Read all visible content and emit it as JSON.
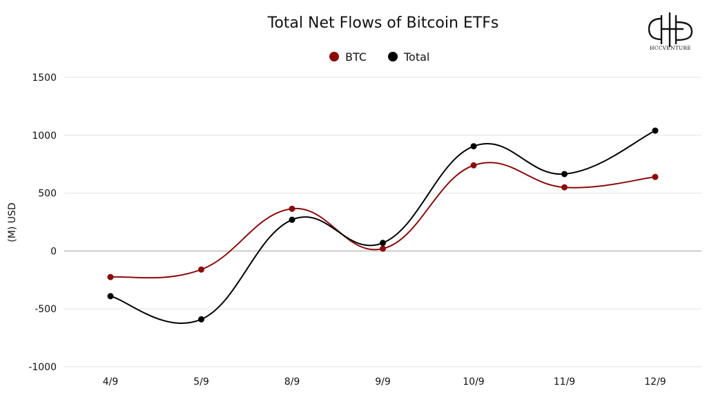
{
  "chart_data": {
    "type": "line",
    "title": "Total Net Flows of Bitcoin ETFs",
    "xlabel": "",
    "ylabel": "(M) USD",
    "categories": [
      "4/9",
      "5/9",
      "8/9",
      "9/9",
      "10/9",
      "11/9",
      "12/9"
    ],
    "ylim": [
      -1000,
      1500
    ],
    "yticks": [
      -1000,
      -500,
      0,
      500,
      1000,
      1500
    ],
    "grid": true,
    "legend_position": "top-center",
    "series": [
      {
        "name": "BTC",
        "color": "#8b0a0a",
        "values": [
          -225,
          -160,
          365,
          20,
          740,
          550,
          640
        ]
      },
      {
        "name": "Total",
        "color": "#000000",
        "values": [
          -390,
          -590,
          270,
          70,
          905,
          665,
          1040
        ]
      }
    ]
  },
  "logo": {
    "text": "HCCVENTURE",
    "icon": "hcc-venture-logo"
  }
}
